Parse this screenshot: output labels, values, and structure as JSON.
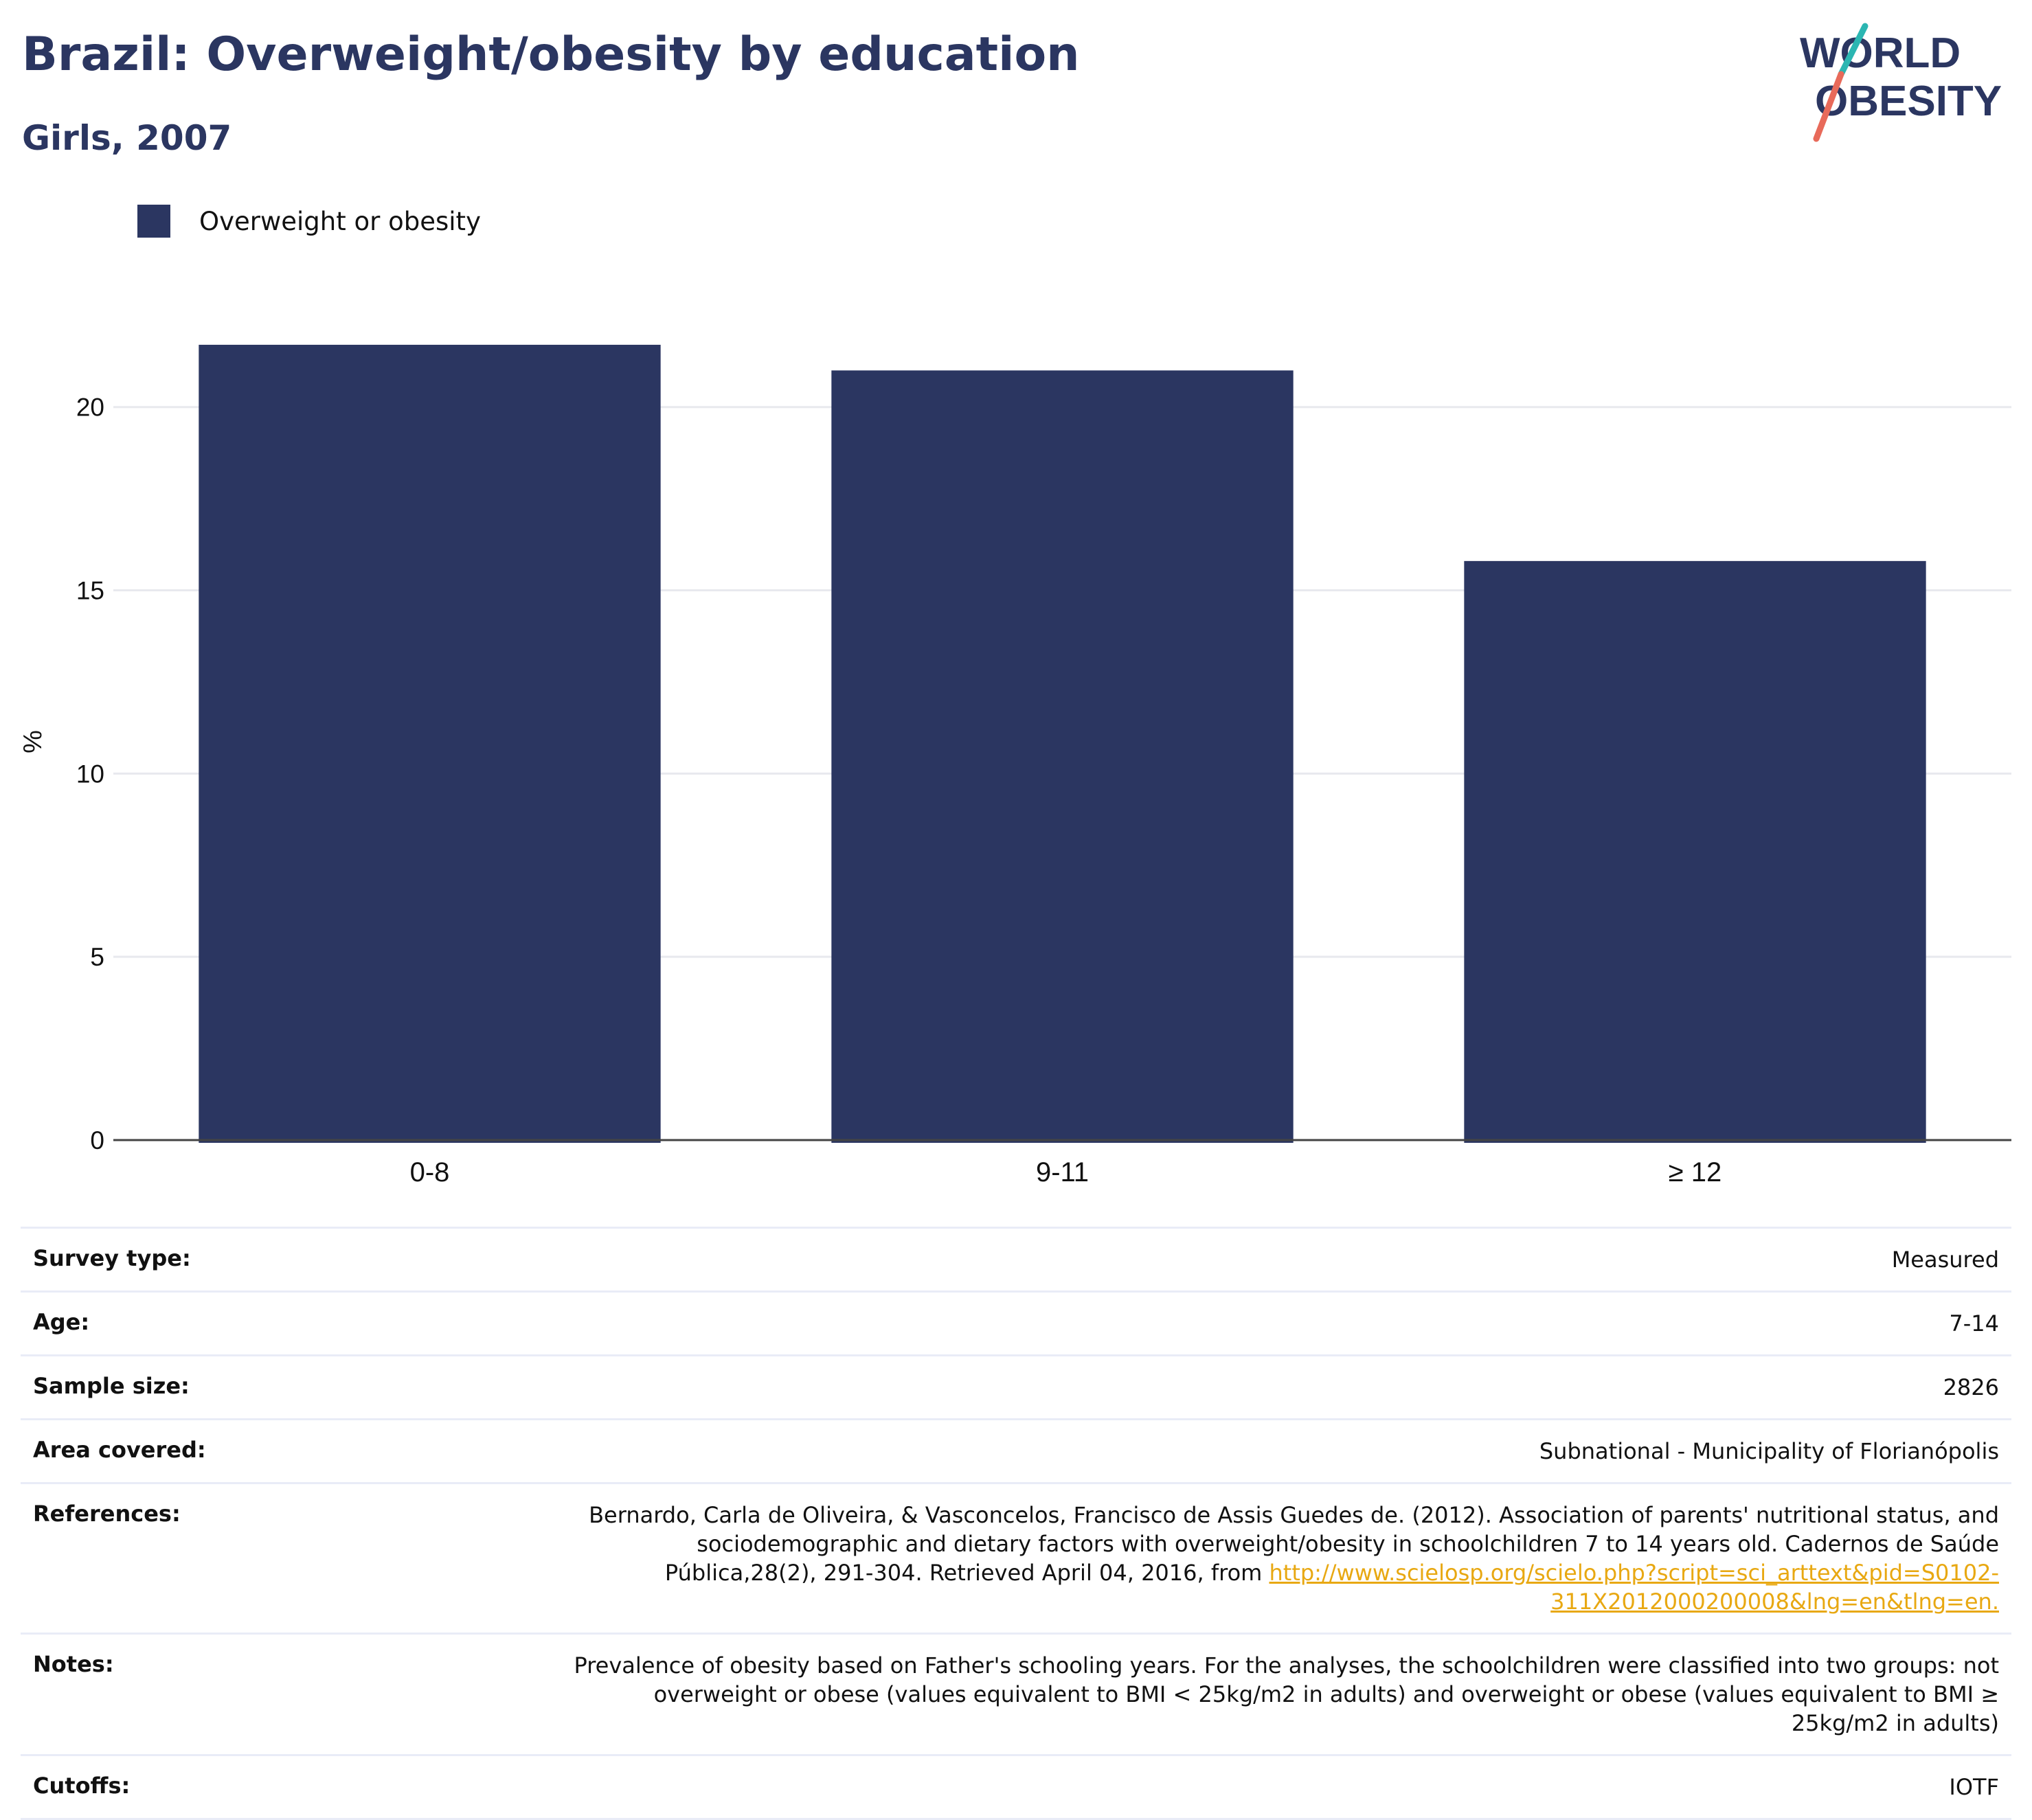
{
  "header": {
    "title": "Brazil: Overweight/obesity by education",
    "subtitle": "Girls, 2007"
  },
  "logo": {
    "line1": "WORLD",
    "line2": "OBESITY",
    "colors": {
      "text": "#2b3661",
      "slash_teal": "#2bb6b2",
      "slash_coral": "#e86a5a"
    }
  },
  "legend": {
    "items": [
      {
        "label": "Overweight or obesity",
        "color": "#2b3661"
      }
    ]
  },
  "chart_data": {
    "type": "bar",
    "categories": [
      "0-8",
      "9-11",
      "≥ 12"
    ],
    "series": [
      {
        "name": "Overweight or obesity",
        "values": [
          21.7,
          21.0,
          15.8
        ],
        "color": "#2b3661"
      }
    ],
    "ylabel": "%",
    "ylim": [
      0,
      22.3
    ],
    "yticks": [
      0,
      5,
      10,
      15,
      20
    ],
    "grid": true,
    "legend_position": "top-left"
  },
  "info": {
    "rows": [
      {
        "label": "Survey type:",
        "value": "Measured"
      },
      {
        "label": "Age:",
        "value": "7-14"
      },
      {
        "label": "Sample size:",
        "value": "2826"
      },
      {
        "label": "Area covered:",
        "value": "Subnational - Municipality of Florianópolis"
      },
      {
        "label": "References:",
        "value": "Bernardo, Carla de Oliveira, & Vasconcelos, Francisco de Assis Guedes de. (2012). Association of parents' nutritional status, and sociodemographic and dietary factors with overweight/obesity in schoolchildren 7 to 14 years old. Cadernos de Saúde Pública,28(2), 291-304. Retrieved April 04, 2016, from ",
        "link": "http://www.scielosp.org/scielo.php?script=sci_arttext&pid=S0102-311X2012000200008&lng=en&tlng=en."
      },
      {
        "label": "Notes:",
        "value": "Prevalence of obesity based on Father's schooling years. For the analyses, the schoolchildren were classified into two groups: not overweight or obese (values equivalent to BMI < 25kg/m2 in adults) and overweight or obese (values equivalent to BMI ≥ 25kg/m2 in adults)"
      },
      {
        "label": "Cutoffs:",
        "value": "IOTF"
      }
    ]
  }
}
